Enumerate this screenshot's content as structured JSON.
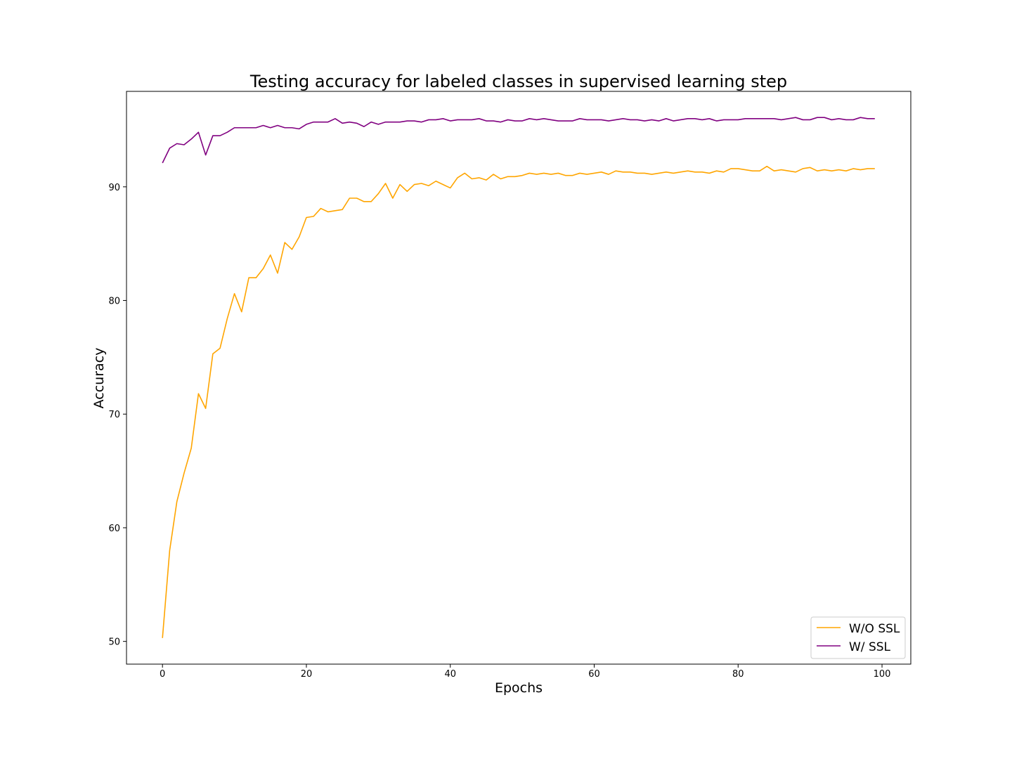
{
  "chart_data": {
    "type": "line",
    "title": "Testing accuracy for labeled classes in supervised learning step",
    "xlabel": "Epochs",
    "ylabel": "Accuracy",
    "xlim": [
      -5,
      104
    ],
    "ylim": [
      48,
      98.4
    ],
    "xticks": [
      0,
      20,
      40,
      60,
      80,
      100
    ],
    "yticks": [
      50,
      60,
      70,
      80,
      90
    ],
    "grid": false,
    "legend_position": "lower-right",
    "series": [
      {
        "name": "W/O SSL",
        "color": "#ffa500",
        "x": [
          0,
          1,
          2,
          3,
          4,
          5,
          6,
          7,
          8,
          9,
          10,
          11,
          12,
          13,
          14,
          15,
          16,
          17,
          18,
          19,
          20,
          21,
          22,
          23,
          24,
          25,
          26,
          27,
          28,
          29,
          30,
          31,
          32,
          33,
          34,
          35,
          36,
          37,
          38,
          39,
          40,
          41,
          42,
          43,
          44,
          45,
          46,
          47,
          48,
          49,
          50,
          51,
          52,
          53,
          54,
          55,
          56,
          57,
          58,
          59,
          60,
          61,
          62,
          63,
          64,
          65,
          66,
          67,
          68,
          69,
          70,
          71,
          72,
          73,
          74,
          75,
          76,
          77,
          78,
          79,
          80,
          81,
          82,
          83,
          84,
          85,
          86,
          87,
          88,
          89,
          90,
          91,
          92,
          93,
          94,
          95,
          96,
          97,
          98,
          99
        ],
        "values": [
          50.3,
          58.0,
          62.3,
          64.8,
          67.0,
          71.8,
          70.5,
          75.3,
          75.8,
          78.4,
          80.6,
          79.0,
          82.0,
          82.0,
          82.8,
          84.0,
          82.4,
          85.1,
          84.5,
          85.6,
          87.3,
          87.4,
          88.1,
          87.8,
          87.9,
          88.0,
          89.0,
          89.0,
          88.7,
          88.7,
          89.4,
          90.3,
          89.0,
          90.2,
          89.6,
          90.2,
          90.3,
          90.1,
          90.5,
          90.2,
          89.9,
          90.8,
          91.2,
          90.7,
          90.8,
          90.6,
          91.1,
          90.7,
          90.9,
          90.9,
          91.0,
          91.2,
          91.1,
          91.2,
          91.1,
          91.2,
          91.0,
          91.0,
          91.2,
          91.1,
          91.2,
          91.3,
          91.1,
          91.4,
          91.3,
          91.3,
          91.2,
          91.2,
          91.1,
          91.2,
          91.3,
          91.2,
          91.3,
          91.4,
          91.3,
          91.3,
          91.2,
          91.4,
          91.3,
          91.6,
          91.6,
          91.5,
          91.4,
          91.4,
          91.8,
          91.4,
          91.5,
          91.4,
          91.3,
          91.6,
          91.7,
          91.4,
          91.5,
          91.4,
          91.5,
          91.4,
          91.6,
          91.5,
          91.6,
          91.6
        ]
      },
      {
        "name": "W/ SSL",
        "color": "#800080",
        "x": [
          0,
          1,
          2,
          3,
          4,
          5,
          6,
          7,
          8,
          9,
          10,
          11,
          12,
          13,
          14,
          15,
          16,
          17,
          18,
          19,
          20,
          21,
          22,
          23,
          24,
          25,
          26,
          27,
          28,
          29,
          30,
          31,
          32,
          33,
          34,
          35,
          36,
          37,
          38,
          39,
          40,
          41,
          42,
          43,
          44,
          45,
          46,
          47,
          48,
          49,
          50,
          51,
          52,
          53,
          54,
          55,
          56,
          57,
          58,
          59,
          60,
          61,
          62,
          63,
          64,
          65,
          66,
          67,
          68,
          69,
          70,
          71,
          72,
          73,
          74,
          75,
          76,
          77,
          78,
          79,
          80,
          81,
          82,
          83,
          84,
          85,
          86,
          87,
          88,
          89,
          90,
          91,
          92,
          93,
          94,
          95,
          96,
          97,
          98,
          99
        ],
        "values": [
          92.1,
          93.4,
          93.8,
          93.7,
          94.2,
          94.8,
          92.8,
          94.5,
          94.5,
          94.8,
          95.2,
          95.2,
          95.2,
          95.2,
          95.4,
          95.2,
          95.4,
          95.2,
          95.2,
          95.1,
          95.5,
          95.7,
          95.7,
          95.7,
          96.0,
          95.6,
          95.7,
          95.6,
          95.3,
          95.7,
          95.5,
          95.7,
          95.7,
          95.7,
          95.8,
          95.8,
          95.7,
          95.9,
          95.9,
          96.0,
          95.8,
          95.9,
          95.9,
          95.9,
          96.0,
          95.8,
          95.8,
          95.7,
          95.9,
          95.8,
          95.8,
          96.0,
          95.9,
          96.0,
          95.9,
          95.8,
          95.8,
          95.8,
          96.0,
          95.9,
          95.9,
          95.9,
          95.8,
          95.9,
          96.0,
          95.9,
          95.9,
          95.8,
          95.9,
          95.8,
          96.0,
          95.8,
          95.9,
          96.0,
          96.0,
          95.9,
          96.0,
          95.8,
          95.9,
          95.9,
          95.9,
          96.0,
          96.0,
          96.0,
          96.0,
          96.0,
          95.9,
          96.0,
          96.1,
          95.9,
          95.9,
          96.1,
          96.1,
          95.9,
          96.0,
          95.9,
          95.9,
          96.1,
          96.0,
          96.0
        ]
      }
    ]
  }
}
